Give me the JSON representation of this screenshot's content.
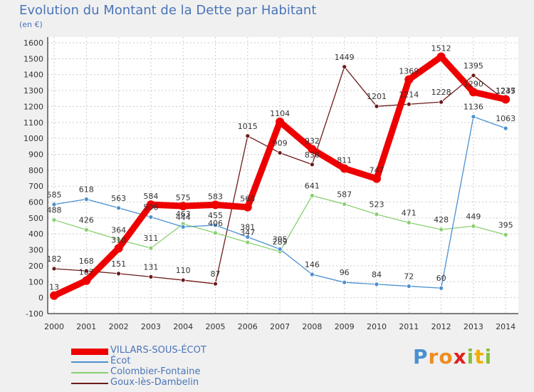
{
  "chart_data": {
    "type": "line",
    "title": "Evolution du Montant de la Dette par Habitant",
    "unit_label": "(en €)",
    "x": [
      2000,
      2001,
      2002,
      2003,
      2004,
      2005,
      2006,
      2007,
      2008,
      2009,
      2010,
      2011,
      2012,
      2013,
      2014
    ],
    "ylim": [
      -100,
      1600
    ],
    "yticks": [
      -100,
      0,
      100,
      200,
      300,
      400,
      500,
      600,
      700,
      800,
      900,
      1000,
      1100,
      1200,
      1300,
      1400,
      1500,
      1600
    ],
    "grid": true,
    "legend_position": "bottom-left",
    "series": [
      {
        "name": "VILLARS-SOUS-ÉCOT",
        "color": "#ee0000",
        "values": [
          13,
          107,
          310,
          584,
          575,
          583,
          568,
          1104,
          932,
          811,
          747,
          1369,
          1512,
          1290,
          1245
        ]
      },
      {
        "name": "Écot",
        "color": "#4a90d0",
        "values": [
          585,
          618,
          563,
          506,
          444,
          455,
          381,
          305,
          146,
          96,
          84,
          72,
          60,
          1136,
          1063
        ]
      },
      {
        "name": "Colombier-Fontaine",
        "color": "#88d070",
        "values": [
          488,
          426,
          364,
          311,
          463,
          406,
          347,
          289,
          641,
          587,
          523,
          471,
          428,
          449,
          395
        ]
      },
      {
        "name": "Goux-lès-Dambelin",
        "color": "#6e1a1a",
        "values": [
          182,
          168,
          151,
          131,
          110,
          87,
          1015,
          909,
          836,
          1449,
          1201,
          1214,
          1228,
          1395,
          1237
        ]
      }
    ],
    "labels": [
      [
        "13",
        "107",
        "310",
        "584",
        "575",
        "583",
        "568",
        "1104",
        "932",
        "811",
        "747",
        "1369",
        "1512",
        "1290",
        "1245"
      ],
      [
        "585",
        "618",
        "563",
        "506",
        "444",
        "455",
        "381",
        "305",
        "146",
        "96",
        "84",
        "72",
        "60",
        "1136",
        "1063"
      ],
      [
        "488",
        "426",
        "364",
        "311",
        "463",
        "406",
        "347",
        "289",
        "641",
        "587",
        "523",
        "471",
        "428",
        "449",
        "395"
      ],
      [
        "182",
        "168",
        "151",
        "131",
        "110",
        "87",
        "1015",
        "909",
        "836",
        "1449",
        "1201",
        "1214",
        "1228",
        "1395",
        "1237"
      ]
    ]
  },
  "brand": {
    "letters": [
      "P",
      "r",
      "o",
      "x",
      "i",
      "t",
      "i"
    ],
    "colors": [
      "#4a90d0",
      "#f08c1e",
      "#f08c1e",
      "#e02020",
      "#88c040",
      "#f0b000",
      "#88c040"
    ]
  }
}
